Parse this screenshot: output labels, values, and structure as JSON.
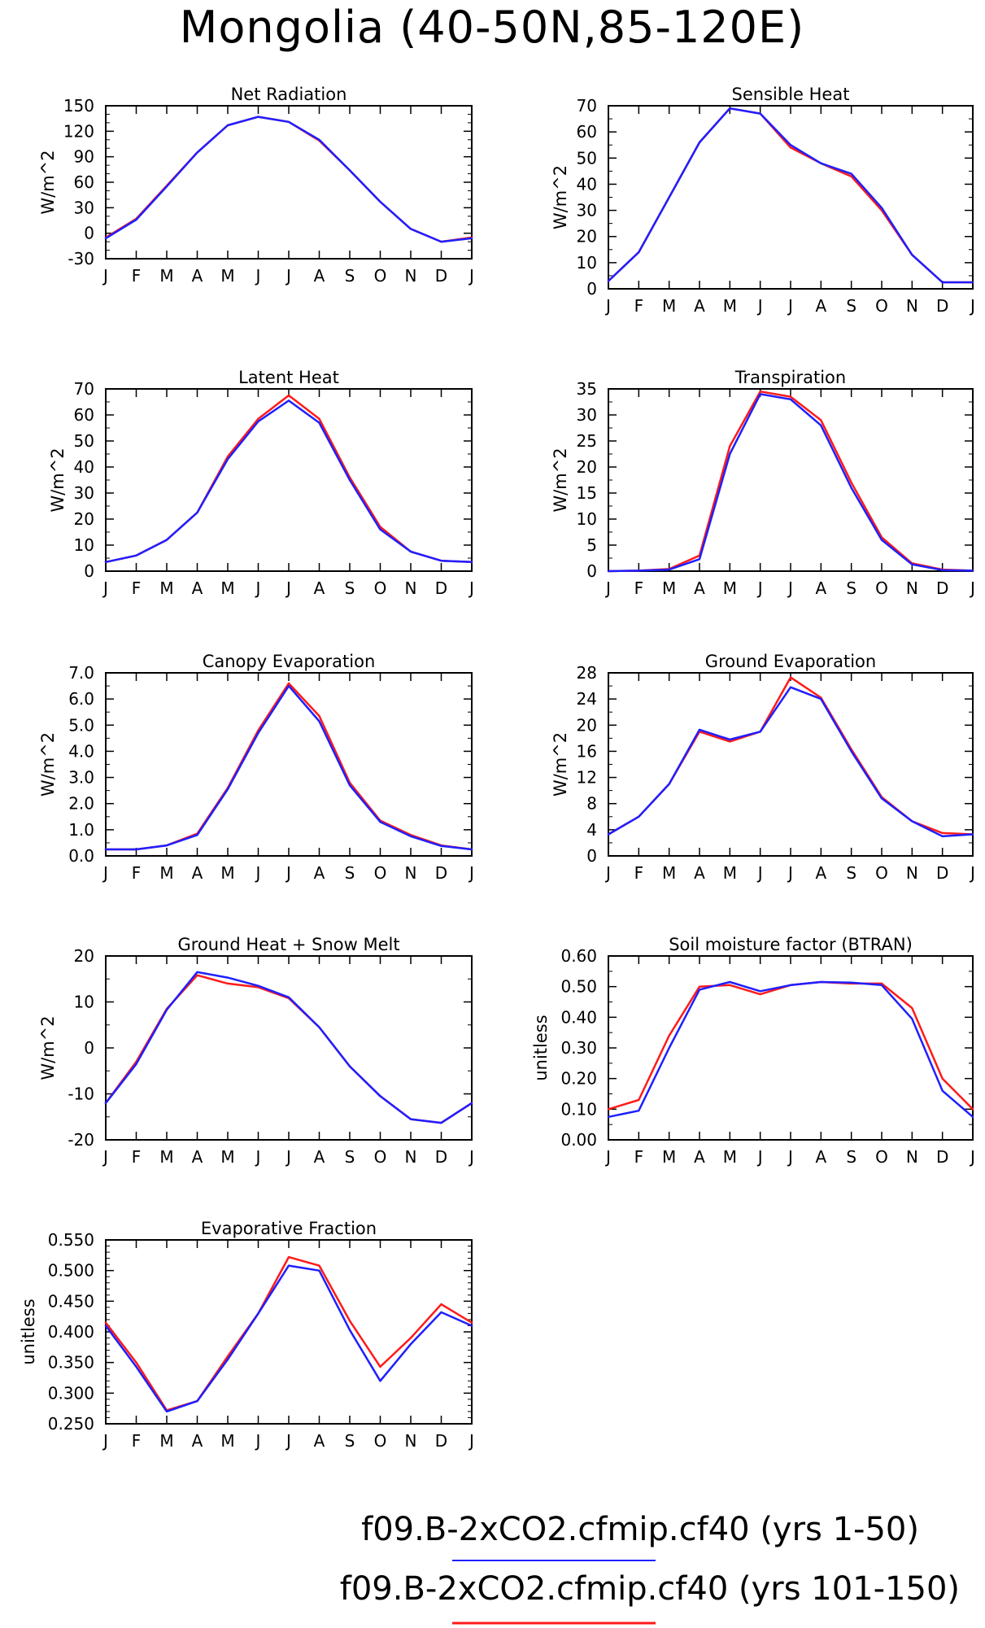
{
  "figure": {
    "title": "Mongolia (40-50N,85-120E)",
    "months": [
      "J",
      "F",
      "M",
      "A",
      "M",
      "J",
      "J",
      "A",
      "S",
      "O",
      "N",
      "D",
      "J"
    ]
  },
  "legend": {
    "entries": [
      {
        "label": "f09.B-2xCO2.cfmip.cf40 (yrs 1-50)",
        "color": "#1f1fff"
      },
      {
        "label": "f09.B-2xCO2.cfmip.cf40 (yrs 101-150)",
        "color": "#ff1a1a"
      }
    ]
  },
  "chart_data": [
    {
      "type": "line",
      "title": "Net Radiation",
      "ylabel": "W/m^2",
      "ylim": [
        -30,
        150
      ],
      "yticks": [
        -30,
        0,
        30,
        60,
        90,
        120,
        150
      ],
      "ytick_labels": [
        "-30",
        "0",
        "30",
        "60",
        "90",
        "120",
        "150"
      ],
      "minor_per_major": 2,
      "x": [
        "J",
        "F",
        "M",
        "A",
        "M",
        "J",
        "J",
        "A",
        "S",
        "O",
        "N",
        "D",
        "J"
      ],
      "series": [
        {
          "name": "yrs 101-150",
          "color": "#ff1a1a",
          "values": [
            -5,
            17,
            56,
            95,
            127,
            137,
            131,
            109,
            74,
            37,
            5,
            -10,
            -5
          ]
        },
        {
          "name": "yrs 1-50",
          "color": "#1f1fff",
          "values": [
            -6,
            16,
            55,
            95,
            127,
            137,
            131,
            110,
            74,
            37,
            5,
            -10,
            -6
          ]
        }
      ]
    },
    {
      "type": "line",
      "title": "Sensible Heat",
      "ylabel": "W/m^2",
      "ylim": [
        0,
        70
      ],
      "yticks": [
        0,
        10,
        20,
        30,
        40,
        50,
        60,
        70
      ],
      "ytick_labels": [
        "0",
        "10",
        "20",
        "30",
        "40",
        "50",
        "60",
        "70"
      ],
      "minor_per_major": 1,
      "x": [
        "J",
        "F",
        "M",
        "A",
        "M",
        "J",
        "J",
        "A",
        "S",
        "O",
        "N",
        "D",
        "J"
      ],
      "series": [
        {
          "name": "yrs 101-150",
          "color": "#ff1a1a",
          "values": [
            3,
            14,
            35,
            56,
            69,
            67,
            54,
            48,
            43,
            30,
            13,
            2.5,
            2.5
          ]
        },
        {
          "name": "yrs 1-50",
          "color": "#1f1fff",
          "values": [
            3,
            14,
            35,
            56,
            69,
            67,
            55,
            48,
            44,
            31,
            13,
            2.5,
            2.5
          ]
        }
      ]
    },
    {
      "type": "line",
      "title": "Latent Heat",
      "ylabel": "W/m^2",
      "ylim": [
        0,
        70
      ],
      "yticks": [
        0,
        10,
        20,
        30,
        40,
        50,
        60,
        70
      ],
      "ytick_labels": [
        "0",
        "10",
        "20",
        "30",
        "40",
        "50",
        "60",
        "70"
      ],
      "minor_per_major": 1,
      "x": [
        "J",
        "F",
        "M",
        "A",
        "M",
        "J",
        "J",
        "A",
        "S",
        "O",
        "N",
        "D",
        "J"
      ],
      "series": [
        {
          "name": "yrs 101-150",
          "color": "#ff1a1a",
          "values": [
            3.5,
            6,
            12,
            22.5,
            44,
            58.5,
            67.5,
            58.5,
            36,
            17,
            7.5,
            4,
            3.5
          ]
        },
        {
          "name": "yrs 1-50",
          "color": "#1f1fff",
          "values": [
            3.5,
            6,
            12,
            22.5,
            43,
            57.5,
            65.5,
            57,
            35,
            16,
            7.5,
            4,
            3.5
          ]
        }
      ]
    },
    {
      "type": "line",
      "title": "Transpiration",
      "ylabel": "W/m^2",
      "ylim": [
        0,
        35
      ],
      "yticks": [
        0,
        5,
        10,
        15,
        20,
        25,
        30,
        35
      ],
      "ytick_labels": [
        "0",
        "5",
        "10",
        "15",
        "20",
        "25",
        "30",
        "35"
      ],
      "minor_per_major": 1,
      "x": [
        "J",
        "F",
        "M",
        "A",
        "M",
        "J",
        "J",
        "A",
        "S",
        "O",
        "N",
        "D",
        "J"
      ],
      "series": [
        {
          "name": "yrs 101-150",
          "color": "#ff1a1a",
          "values": [
            0,
            0.1,
            0.4,
            3,
            24,
            34.5,
            33.5,
            29,
            17,
            6.5,
            1.5,
            0.3,
            0.1
          ]
        },
        {
          "name": "yrs 1-50",
          "color": "#1f1fff",
          "values": [
            0,
            0.1,
            0.3,
            2.3,
            22.5,
            34,
            33,
            28,
            16,
            6,
            1.3,
            0.2,
            0.1
          ]
        }
      ]
    },
    {
      "type": "line",
      "title": "Canopy Evaporation",
      "ylabel": "W/m^2",
      "ylim": [
        0,
        7
      ],
      "yticks": [
        0,
        1,
        2,
        3,
        4,
        5,
        6,
        7
      ],
      "ytick_labels": [
        "0.0",
        "1.0",
        "2.0",
        "3.0",
        "4.0",
        "5.0",
        "6.0",
        "7.0"
      ],
      "minor_per_major": 1,
      "x": [
        "J",
        "F",
        "M",
        "A",
        "M",
        "J",
        "J",
        "A",
        "S",
        "O",
        "N",
        "D",
        "J"
      ],
      "series": [
        {
          "name": "yrs 101-150",
          "color": "#ff1a1a",
          "values": [
            0.25,
            0.25,
            0.4,
            0.85,
            2.6,
            4.8,
            6.6,
            5.35,
            2.8,
            1.35,
            0.8,
            0.4,
            0.25
          ]
        },
        {
          "name": "yrs 1-50",
          "color": "#1f1fff",
          "values": [
            0.25,
            0.25,
            0.4,
            0.8,
            2.55,
            4.7,
            6.5,
            5.15,
            2.7,
            1.3,
            0.75,
            0.38,
            0.25
          ]
        }
      ]
    },
    {
      "type": "line",
      "title": "Ground Evaporation",
      "ylabel": "W/m^2",
      "ylim": [
        0,
        28
      ],
      "yticks": [
        0,
        4,
        8,
        12,
        16,
        20,
        24,
        28
      ],
      "ytick_labels": [
        "0",
        "4",
        "8",
        "12",
        "16",
        "20",
        "24",
        "28"
      ],
      "minor_per_major": 1,
      "x": [
        "J",
        "F",
        "M",
        "A",
        "M",
        "J",
        "J",
        "A",
        "S",
        "O",
        "N",
        "D",
        "J"
      ],
      "series": [
        {
          "name": "yrs 101-150",
          "color": "#ff1a1a",
          "values": [
            3.3,
            6,
            11,
            19,
            17.5,
            19,
            27.3,
            24.2,
            16.3,
            9,
            5.3,
            3.5,
            3.3
          ]
        },
        {
          "name": "yrs 1-50",
          "color": "#1f1fff",
          "values": [
            3.3,
            6,
            11,
            19.3,
            17.8,
            19,
            25.8,
            24,
            16,
            8.8,
            5.3,
            3,
            3.3
          ]
        }
      ]
    },
    {
      "type": "line",
      "title": "Ground Heat + Snow Melt",
      "ylabel": "W/m^2",
      "ylim": [
        -20,
        20
      ],
      "yticks": [
        -20,
        -10,
        0,
        10,
        20
      ],
      "ytick_labels": [
        "-20",
        "-10",
        "0",
        "10",
        "20"
      ],
      "minor_per_major": 1,
      "x": [
        "J",
        "F",
        "M",
        "A",
        "M",
        "J",
        "J",
        "A",
        "S",
        "O",
        "N",
        "D",
        "J"
      ],
      "series": [
        {
          "name": "yrs 101-150",
          "color": "#ff1a1a",
          "values": [
            -12,
            -3,
            8.5,
            15.8,
            14,
            13.2,
            10.8,
            4.5,
            -4,
            -10.5,
            -15.5,
            -16.3,
            -12
          ]
        },
        {
          "name": "yrs 1-50",
          "color": "#1f1fff",
          "values": [
            -12,
            -3.5,
            8.3,
            16.5,
            15.3,
            13.5,
            11,
            4.5,
            -4,
            -10.5,
            -15.5,
            -16.3,
            -12
          ]
        }
      ]
    },
    {
      "type": "line",
      "title": "Soil moisture factor (BTRAN)",
      "ylabel": "unitless",
      "ylim": [
        0,
        0.6
      ],
      "yticks": [
        0,
        0.1,
        0.2,
        0.3,
        0.4,
        0.5,
        0.6
      ],
      "ytick_labels": [
        "0.00",
        "0.10",
        "0.20",
        "0.30",
        "0.40",
        "0.50",
        "0.60"
      ],
      "minor_per_major": 1,
      "x": [
        "J",
        "F",
        "M",
        "A",
        "M",
        "J",
        "J",
        "A",
        "S",
        "O",
        "N",
        "D",
        "J"
      ],
      "series": [
        {
          "name": "yrs 101-150",
          "color": "#ff1a1a",
          "values": [
            0.1,
            0.13,
            0.34,
            0.5,
            0.505,
            0.475,
            0.505,
            0.515,
            0.51,
            0.51,
            0.43,
            0.2,
            0.1
          ]
        },
        {
          "name": "yrs 1-50",
          "color": "#1f1fff",
          "values": [
            0.075,
            0.095,
            0.3,
            0.49,
            0.515,
            0.485,
            0.505,
            0.515,
            0.513,
            0.505,
            0.395,
            0.16,
            0.075
          ]
        }
      ]
    },
    {
      "type": "line",
      "title": "Evaporative Fraction",
      "ylabel": "unitless",
      "ylim": [
        0.25,
        0.55
      ],
      "yticks": [
        0.25,
        0.3,
        0.35,
        0.4,
        0.45,
        0.5,
        0.55
      ],
      "ytick_labels": [
        "0.250",
        "0.300",
        "0.350",
        "0.400",
        "0.450",
        "0.500",
        "0.550"
      ],
      "minor_per_major": 4,
      "x": [
        "J",
        "F",
        "M",
        "A",
        "M",
        "J",
        "J",
        "A",
        "S",
        "O",
        "N",
        "D",
        "J"
      ],
      "series": [
        {
          "name": "yrs 101-150",
          "color": "#ff1a1a",
          "values": [
            0.415,
            0.35,
            0.272,
            0.287,
            0.36,
            0.43,
            0.522,
            0.508,
            0.418,
            0.343,
            0.39,
            0.445,
            0.415
          ]
        },
        {
          "name": "yrs 1-50",
          "color": "#1f1fff",
          "values": [
            0.41,
            0.343,
            0.27,
            0.287,
            0.355,
            0.43,
            0.508,
            0.5,
            0.403,
            0.32,
            0.38,
            0.432,
            0.41
          ]
        }
      ]
    }
  ]
}
